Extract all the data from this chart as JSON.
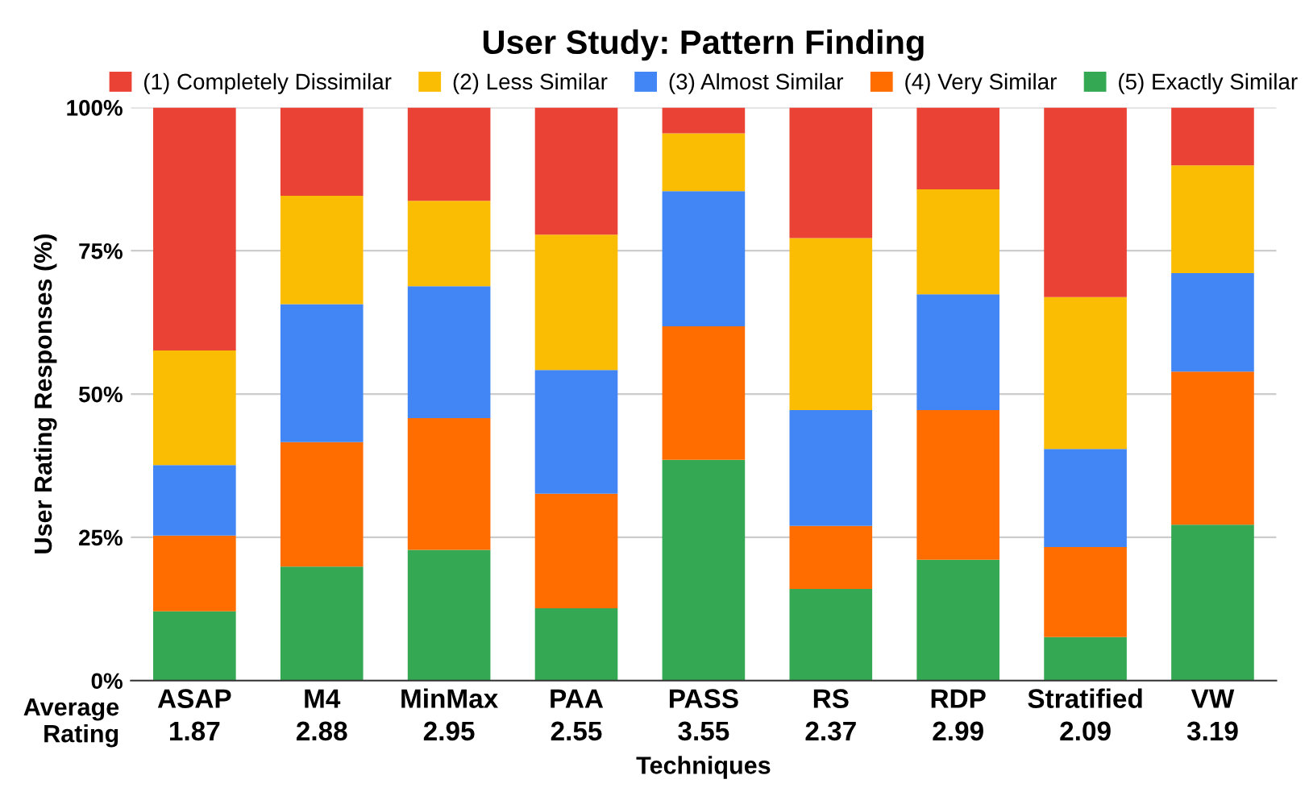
{
  "chart_data": {
    "type": "bar",
    "stacked": true,
    "title": "User Study: Pattern Finding",
    "xlabel": "Techniques",
    "ylabel": "User Rating Responses (%)",
    "categories": [
      "ASAP",
      "M4",
      "MinMax",
      "PAA",
      "PASS",
      "RS",
      "RDP",
      "Stratified",
      "VW"
    ],
    "series": [
      {
        "name": "(5) Exactly Similar",
        "color": "#34a853",
        "values": [
          12.1,
          19.9,
          22.8,
          12.6,
          38.5,
          16.0,
          21.1,
          7.6,
          27.2
        ]
      },
      {
        "name": "(4) Very Similar",
        "color": "#ff6d01",
        "values": [
          13.2,
          21.7,
          23.0,
          20.0,
          23.3,
          11.0,
          26.1,
          15.7,
          26.7
        ]
      },
      {
        "name": "(3) Almost Similar",
        "color": "#4285f4",
        "values": [
          12.3,
          24.1,
          23.0,
          21.6,
          23.6,
          20.2,
          20.2,
          17.1,
          17.2
        ]
      },
      {
        "name": "(2) Less Similar",
        "color": "#fbbc04",
        "values": [
          20.0,
          18.9,
          14.9,
          23.6,
          10.1,
          30.0,
          18.3,
          26.5,
          18.8
        ]
      },
      {
        "name": "(1) Completely Dissimilar",
        "color": "#ea4335",
        "values": [
          42.4,
          15.4,
          16.3,
          22.2,
          4.5,
          22.8,
          14.3,
          33.1,
          10.1
        ]
      }
    ],
    "ylim": [
      0,
      100
    ],
    "yticks": [
      {
        "value": 0,
        "label": "0%"
      },
      {
        "value": 25,
        "label": "25%"
      },
      {
        "value": 50,
        "label": "50%"
      },
      {
        "value": 75,
        "label": "75%"
      },
      {
        "value": 100,
        "label": "100%"
      }
    ],
    "grid": "y",
    "legend": "top",
    "annotations": [
      "Average Rating",
      "1.87",
      "2.88",
      "2.95",
      "2.55",
      "3.55",
      "2.37",
      "2.99",
      "2.09",
      "3.19"
    ]
  }
}
